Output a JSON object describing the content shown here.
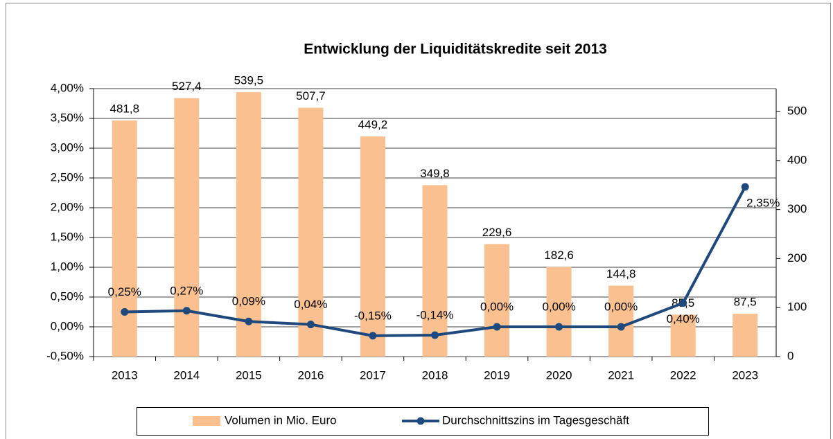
{
  "chart_data": {
    "type": "combo",
    "title": "Entwicklung der Liquiditätskredite seit 2013",
    "categories": [
      "2013",
      "2014",
      "2015",
      "2016",
      "2017",
      "2018",
      "2019",
      "2020",
      "2021",
      "2022",
      "2023"
    ],
    "series": [
      {
        "name": "Volumen in Mio. Euro",
        "type": "bar",
        "axis": "y2",
        "color": "#fac090",
        "values": [
          481.8,
          527.4,
          539.5,
          507.7,
          449.2,
          349.8,
          229.6,
          182.6,
          144.8,
          85.5,
          87.5
        ],
        "value_labels": [
          "481,8",
          "527,4",
          "539,5",
          "507,7",
          "449,2",
          "349,8",
          "229,6",
          "182,6",
          "144,8",
          "85,5",
          "87,5"
        ]
      },
      {
        "name": "Durchschnittszins im Tagesgeschäft",
        "type": "line",
        "color": "#1f497d",
        "values": [
          0.25,
          0.27,
          0.09,
          0.04,
          -0.15,
          -0.14,
          0.0,
          0.0,
          0.0,
          0.4,
          2.35
        ],
        "value_labels": [
          "0,25%",
          "0,27%",
          "0,09%",
          "0,04%",
          "-0,15%",
          "-0,14%",
          "0,00%",
          "0,00%",
          "0,00%",
          "0,40%",
          "2,35%"
        ]
      }
    ],
    "ylim": [
      -0.5,
      4.0
    ],
    "yticks": [
      {
        "value": -0.5,
        "label": "-0,50%"
      },
      {
        "value": 0,
        "label": "0,00%"
      },
      {
        "value": 0.5,
        "label": "0,50%"
      },
      {
        "value": 1.0,
        "label": "1,00%"
      },
      {
        "value": 1.5,
        "label": "1,50%"
      },
      {
        "value": 2.0,
        "label": "2,00%"
      },
      {
        "value": 2.5,
        "label": "2,50%"
      },
      {
        "value": 3.0,
        "label": "3,00%"
      },
      {
        "value": 3.5,
        "label": "3,50%"
      },
      {
        "value": 4.0,
        "label": "4,00%"
      }
    ],
    "y2lim": [
      0,
      546.7
    ],
    "y2ticks": [
      0,
      100,
      200,
      300,
      400,
      500
    ],
    "grid": true
  }
}
